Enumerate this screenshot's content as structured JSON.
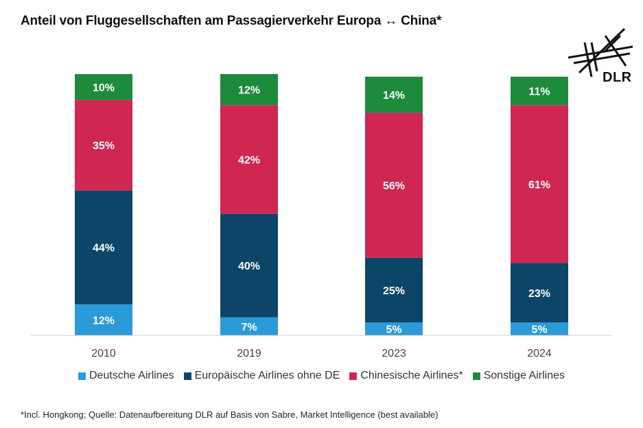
{
  "title": "Anteil von Fluggesellschaften am Passagierverkehr Europa ↔ China*",
  "logo_text": "DLR",
  "footnote": "*Incl. Hongkong; Quelle: Datenaufbereitung DLR auf Basis von Sabre, Market Intelligence (best available)",
  "chart_data": {
    "type": "bar",
    "stacked": true,
    "categories": [
      "2010",
      "2019",
      "2023",
      "2024"
    ],
    "series": [
      {
        "name": "Deutsche Airlines",
        "color": "#2b9ad8",
        "values": [
          12,
          7,
          5,
          5
        ],
        "labels": [
          "12%",
          "7%",
          "5%",
          "5%"
        ]
      },
      {
        "name": "Europäische Airlines ohne DE",
        "color": "#0b4668",
        "values": [
          44,
          40,
          25,
          23
        ],
        "labels": [
          "44%",
          "40%",
          "25%",
          "23%"
        ]
      },
      {
        "name": "Chinesische Airlines*",
        "color": "#cf2652",
        "values": [
          35,
          42,
          56,
          61
        ],
        "labels": [
          "35%",
          "42%",
          "56%",
          "61%"
        ]
      },
      {
        "name": "Sonstige Airlines",
        "color": "#1d8a3c",
        "values": [
          10,
          12,
          14,
          11
        ],
        "labels": [
          "10%",
          "12%",
          "14%",
          "11%"
        ]
      }
    ],
    "ylim": [
      0,
      101
    ],
    "grid": false,
    "legend_position": "bottom"
  }
}
